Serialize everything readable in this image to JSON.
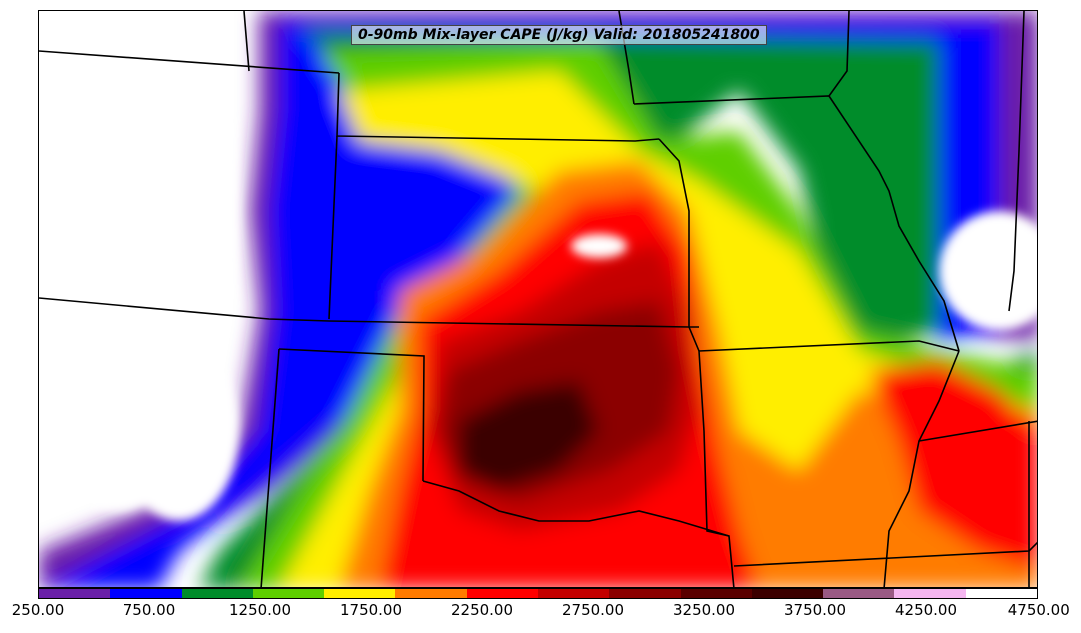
{
  "title": "0-90mb Mix-layer CAPE (J/kg) Valid: 201805241800",
  "colorbar": {
    "colors": [
      "#6a1fa8",
      "#0000ff",
      "#008c2a",
      "#5ecf00",
      "#ffee00",
      "#ff7b00",
      "#ff0000",
      "#c40000",
      "#8b0000",
      "#5a0000",
      "#3b0000",
      "#9a5a84",
      "#f5b6f0",
      "#ffffff"
    ],
    "tick_labels": [
      "250.00",
      "750.00",
      "1250.00",
      "1750.00",
      "2250.00",
      "2750.00",
      "3250.00",
      "3750.00",
      "4250.00",
      "4750.00"
    ]
  }
}
